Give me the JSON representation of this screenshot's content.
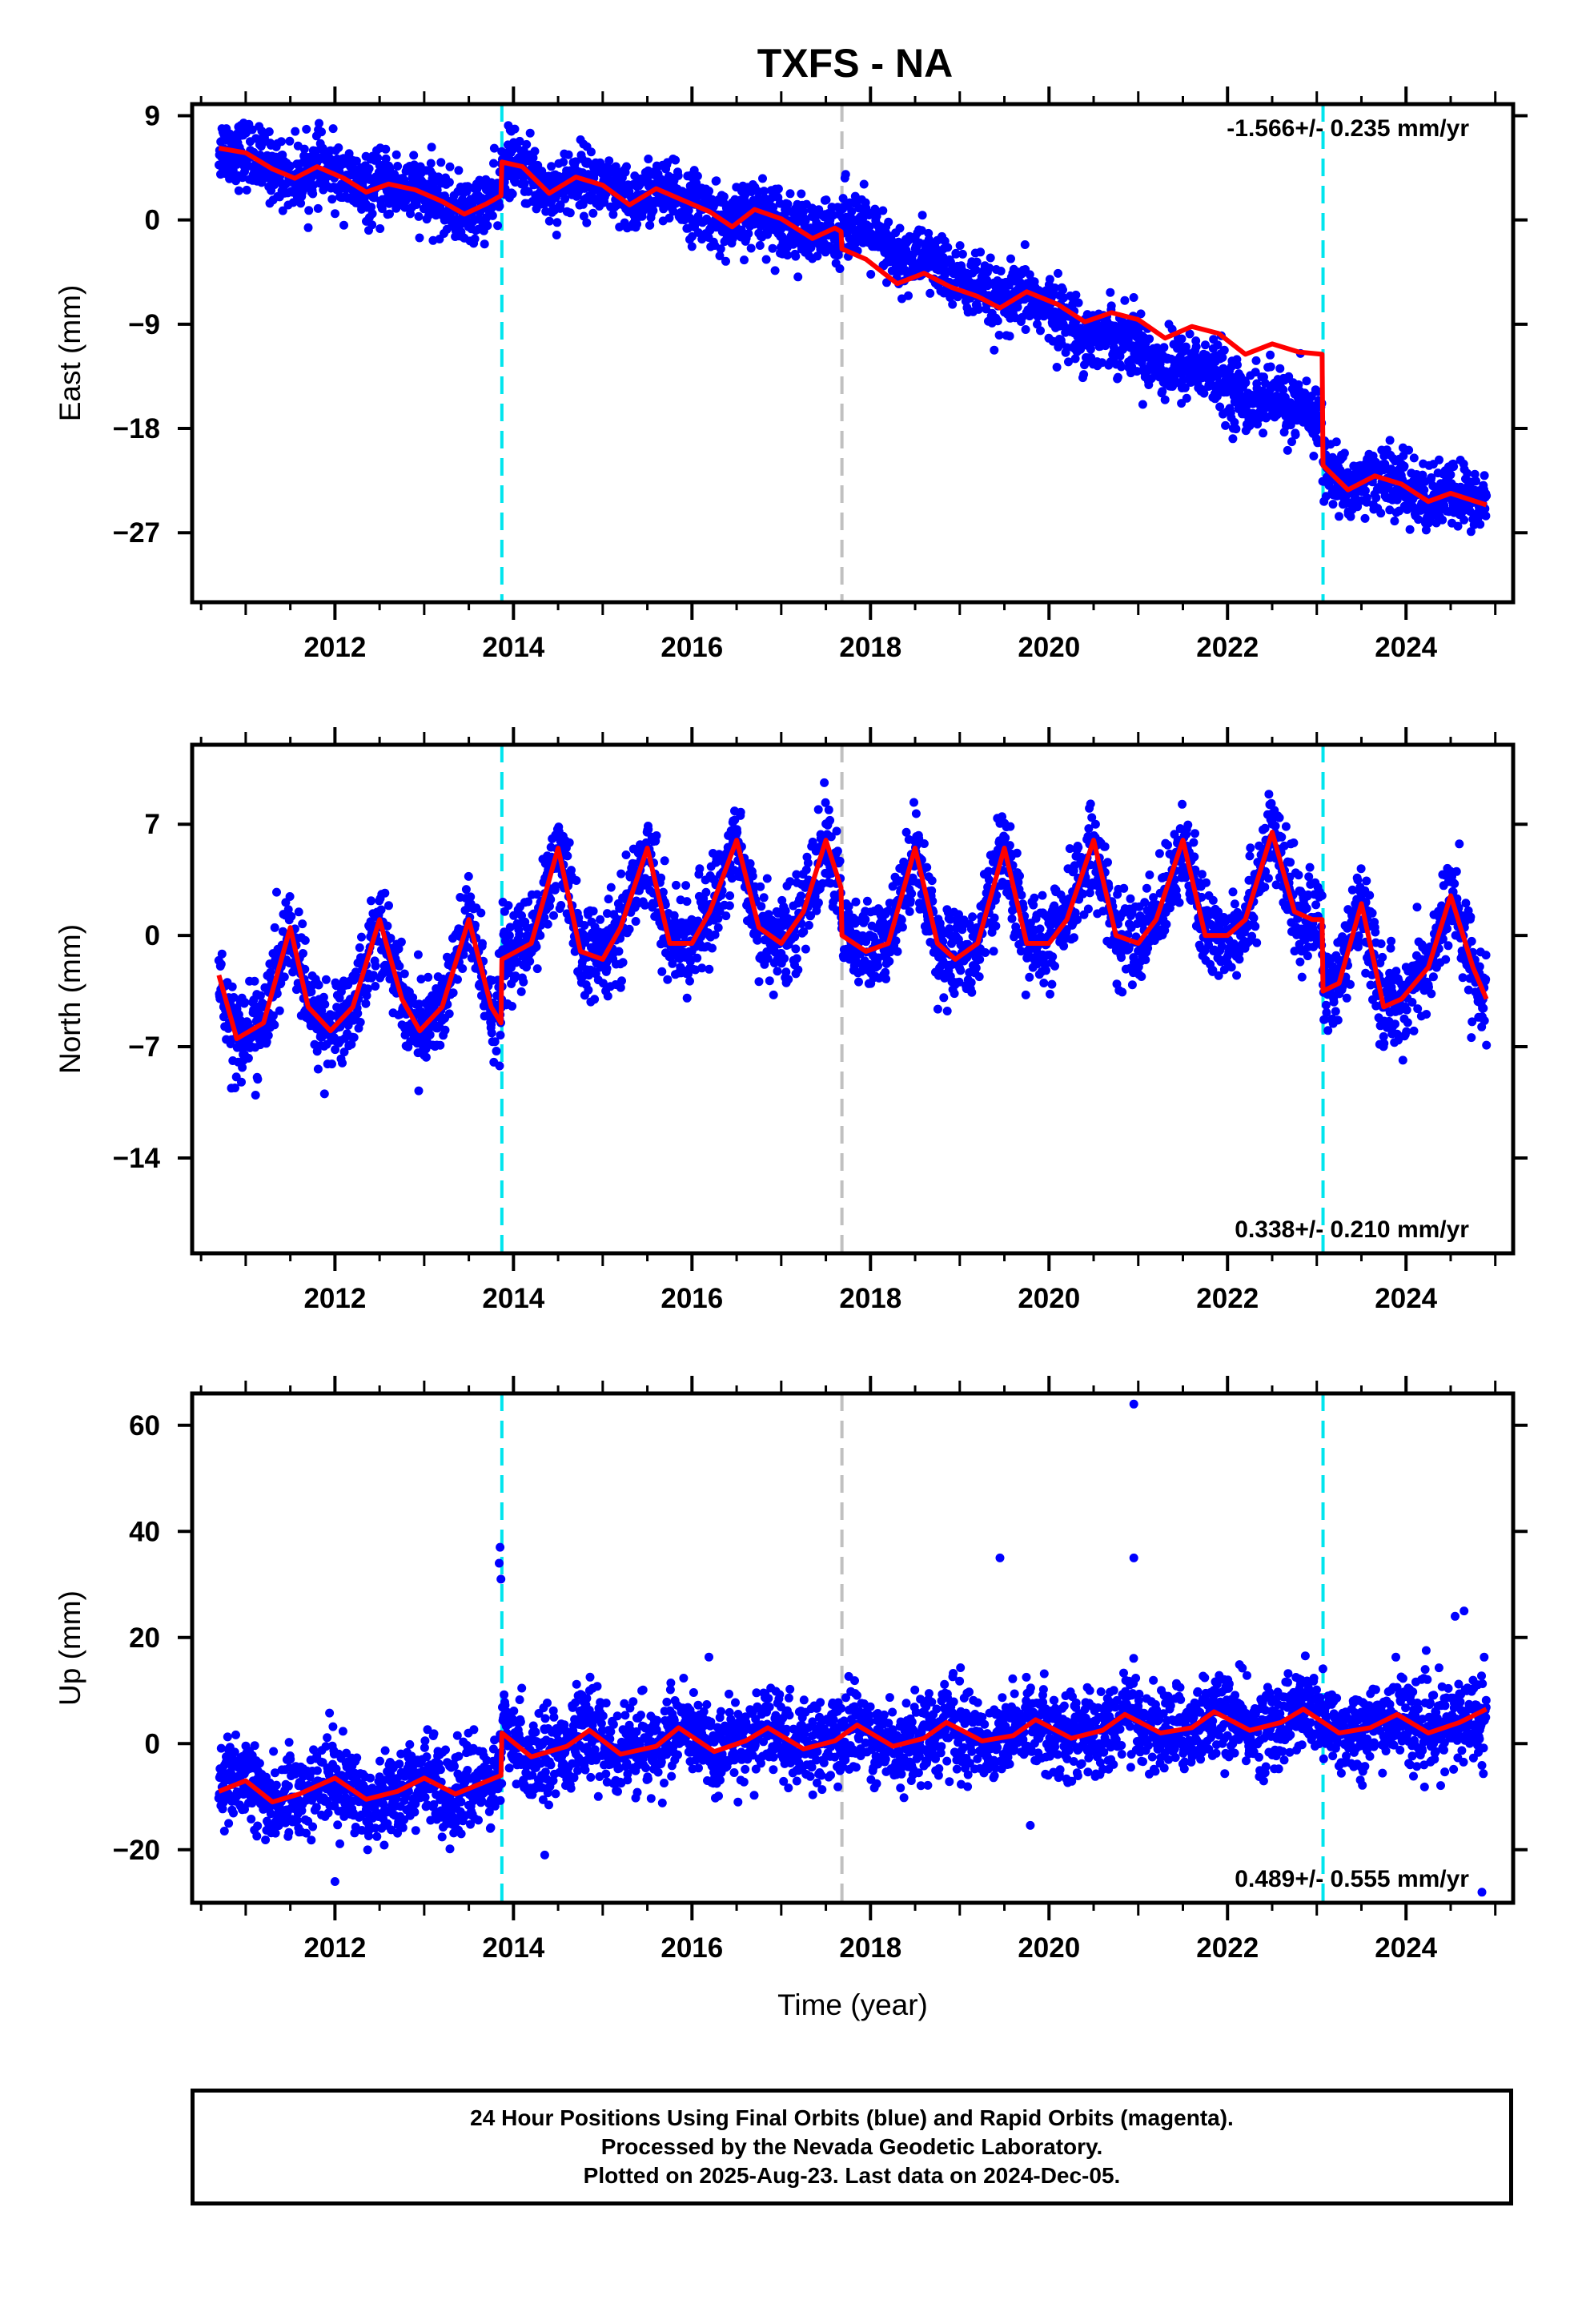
{
  "title": "TXFS - NA",
  "colors": {
    "final_orbits": "#0000ff",
    "model": "#ff0000",
    "offset_equipment": "#00e5ee",
    "offset_earthquake": "#c0c0c0"
  },
  "footer": {
    "line1": "24 Hour Positions Using Final Orbits (blue) and Rapid Orbits (magenta).",
    "line2": "Processed by the Nevada Geodetic Laboratory.",
    "line3": "Plotted on 2025-Aug-23. Last data on 2024-Dec-05."
  },
  "chart_data": [
    {
      "type": "scatter",
      "ylabel": "East (mm)",
      "xlabel": "",
      "xlim": [
        2010.4,
        2025.2
      ],
      "ylim": [
        -33,
        10
      ],
      "xticks": [
        2012,
        2014,
        2016,
        2018,
        2020,
        2022,
        2024
      ],
      "yticks": [
        9,
        0,
        -9,
        -18,
        -27
      ],
      "rate_label": "-1.566+/- 0.235 mm/yr",
      "rate_position": "top-right",
      "offsets_equipment": [
        2013.87,
        2023.07
      ],
      "offsets_earthquake": [
        2017.68
      ],
      "model_line": [
        [
          2010.7,
          6.2
        ],
        [
          2011.0,
          5.8
        ],
        [
          2011.3,
          4.4
        ],
        [
          2011.55,
          3.6
        ],
        [
          2011.8,
          4.6
        ],
        [
          2012.1,
          3.6
        ],
        [
          2012.35,
          2.4
        ],
        [
          2012.6,
          3.1
        ],
        [
          2012.9,
          2.6
        ],
        [
          2013.2,
          1.6
        ],
        [
          2013.45,
          0.5
        ],
        [
          2013.7,
          1.4
        ],
        [
          2013.86,
          2.1
        ],
        [
          2013.87,
          5.0
        ],
        [
          2014.1,
          4.6
        ],
        [
          2014.4,
          2.3
        ],
        [
          2014.7,
          3.7
        ],
        [
          2015.0,
          3.0
        ],
        [
          2015.3,
          1.3
        ],
        [
          2015.6,
          2.7
        ],
        [
          2015.9,
          1.7
        ],
        [
          2016.2,
          0.7
        ],
        [
          2016.45,
          -0.6
        ],
        [
          2016.7,
          0.9
        ],
        [
          2017.0,
          0.1
        ],
        [
          2017.35,
          -1.6
        ],
        [
          2017.6,
          -0.7
        ],
        [
          2017.67,
          -1.0
        ],
        [
          2017.68,
          -2.5
        ],
        [
          2017.95,
          -3.4
        ],
        [
          2018.3,
          -5.5
        ],
        [
          2018.6,
          -4.6
        ],
        [
          2018.9,
          -5.8
        ],
        [
          2019.2,
          -6.6
        ],
        [
          2019.45,
          -7.6
        ],
        [
          2019.75,
          -6.2
        ],
        [
          2020.1,
          -7.3
        ],
        [
          2020.4,
          -8.8
        ],
        [
          2020.7,
          -8.0
        ],
        [
          2021.0,
          -8.6
        ],
        [
          2021.3,
          -10.2
        ],
        [
          2021.6,
          -9.2
        ],
        [
          2021.9,
          -9.8
        ],
        [
          2022.2,
          -11.6
        ],
        [
          2022.5,
          -10.7
        ],
        [
          2022.8,
          -11.4
        ],
        [
          2023.06,
          -11.6
        ],
        [
          2023.07,
          -21.2
        ],
        [
          2023.35,
          -23.3
        ],
        [
          2023.65,
          -22.1
        ],
        [
          2023.95,
          -22.8
        ],
        [
          2024.25,
          -24.3
        ],
        [
          2024.5,
          -23.6
        ],
        [
          2024.9,
          -24.6
        ]
      ]
    },
    {
      "type": "scatter",
      "ylabel": "North (mm)",
      "xlabel": "",
      "xlim": [
        2010.4,
        2025.2
      ],
      "ylim": [
        -20,
        12
      ],
      "xticks": [
        2012,
        2014,
        2016,
        2018,
        2020,
        2022,
        2024
      ],
      "yticks": [
        7,
        0,
        -7,
        -14
      ],
      "rate_label": "0.338+/- 0.210 mm/yr",
      "rate_position": "bottom-right",
      "offsets_equipment": [
        2013.87,
        2023.07
      ],
      "offsets_earthquake": [
        2017.68
      ],
      "model_line": [
        [
          2010.7,
          -2.5
        ],
        [
          2010.9,
          -6.5
        ],
        [
          2011.2,
          -5.5
        ],
        [
          2011.5,
          0.5
        ],
        [
          2011.7,
          -4.5
        ],
        [
          2011.95,
          -6.0
        ],
        [
          2012.2,
          -4.5
        ],
        [
          2012.5,
          1.0
        ],
        [
          2012.75,
          -4.0
        ],
        [
          2012.95,
          -6.0
        ],
        [
          2013.2,
          -4.5
        ],
        [
          2013.5,
          1.0
        ],
        [
          2013.75,
          -4.5
        ],
        [
          2013.86,
          -5.5
        ],
        [
          2013.87,
          -1.5
        ],
        [
          2014.2,
          -0.5
        ],
        [
          2014.5,
          5.5
        ],
        [
          2014.75,
          -1.0
        ],
        [
          2015.0,
          -1.5
        ],
        [
          2015.2,
          0.5
        ],
        [
          2015.5,
          5.5
        ],
        [
          2015.75,
          -0.5
        ],
        [
          2016.0,
          -0.5
        ],
        [
          2016.2,
          1.5
        ],
        [
          2016.5,
          6.0
        ],
        [
          2016.75,
          0.5
        ],
        [
          2017.0,
          -0.5
        ],
        [
          2017.25,
          1.5
        ],
        [
          2017.5,
          6.0
        ],
        [
          2017.67,
          3.0
        ],
        [
          2017.68,
          0.0
        ],
        [
          2017.95,
          -1.0
        ],
        [
          2018.2,
          -0.5
        ],
        [
          2018.5,
          5.5
        ],
        [
          2018.75,
          -0.5
        ],
        [
          2018.95,
          -1.5
        ],
        [
          2019.2,
          -0.5
        ],
        [
          2019.5,
          5.5
        ],
        [
          2019.75,
          -0.5
        ],
        [
          2020.0,
          -0.5
        ],
        [
          2020.2,
          1.0
        ],
        [
          2020.5,
          6.0
        ],
        [
          2020.75,
          0.0
        ],
        [
          2021.0,
          -0.5
        ],
        [
          2021.2,
          1.0
        ],
        [
          2021.5,
          6.0
        ],
        [
          2021.75,
          0.0
        ],
        [
          2022.0,
          0.0
        ],
        [
          2022.2,
          1.0
        ],
        [
          2022.5,
          6.5
        ],
        [
          2022.75,
          1.5
        ],
        [
          2022.95,
          1.0
        ],
        [
          2023.06,
          1.0
        ],
        [
          2023.07,
          -3.5
        ],
        [
          2023.25,
          -3.0
        ],
        [
          2023.5,
          2.0
        ],
        [
          2023.75,
          -4.5
        ],
        [
          2023.95,
          -4.0
        ],
        [
          2024.25,
          -2.0
        ],
        [
          2024.5,
          2.5
        ],
        [
          2024.75,
          -2.0
        ],
        [
          2024.9,
          -4.0
        ]
      ]
    },
    {
      "type": "scatter",
      "ylabel": "Up (mm)",
      "xlabel": "Time (year)",
      "xlim": [
        2010.4,
        2025.2
      ],
      "ylim": [
        -30,
        66
      ],
      "xticks": [
        2012,
        2014,
        2016,
        2018,
        2020,
        2022,
        2024
      ],
      "yticks": [
        60,
        40,
        20,
        0,
        -20
      ],
      "rate_label": "0.489+/- 0.555 mm/yr",
      "rate_position": "bottom-right",
      "offsets_equipment": [
        2013.87,
        2023.07
      ],
      "offsets_earthquake": [
        2017.68
      ],
      "outliers": [
        [
          2013.85,
          37
        ],
        [
          2013.84,
          34
        ],
        [
          2013.86,
          31
        ],
        [
          2019.45,
          35
        ],
        [
          2020.95,
          64
        ],
        [
          2020.95,
          35
        ],
        [
          2024.65,
          25
        ],
        [
          2024.55,
          24
        ],
        [
          2012.0,
          -26
        ],
        [
          2014.35,
          -21
        ],
        [
          2024.85,
          -28
        ]
      ],
      "model_line": [
        [
          2010.7,
          -9.0
        ],
        [
          2011.0,
          -7.0
        ],
        [
          2011.3,
          -11.0
        ],
        [
          2011.6,
          -9.5
        ],
        [
          2012.0,
          -6.5
        ],
        [
          2012.35,
          -10.5
        ],
        [
          2012.7,
          -9.0
        ],
        [
          2013.0,
          -6.5
        ],
        [
          2013.35,
          -9.5
        ],
        [
          2013.86,
          -6.0
        ],
        [
          2013.87,
          2.0
        ],
        [
          2014.2,
          -2.5
        ],
        [
          2014.6,
          -0.5
        ],
        [
          2014.85,
          2.5
        ],
        [
          2015.2,
          -2.0
        ],
        [
          2015.6,
          -0.5
        ],
        [
          2015.85,
          3.0
        ],
        [
          2016.25,
          -1.5
        ],
        [
          2016.6,
          0.5
        ],
        [
          2016.85,
          3.0
        ],
        [
          2017.25,
          -1.0
        ],
        [
          2017.6,
          0.5
        ],
        [
          2017.85,
          3.5
        ],
        [
          2018.25,
          -0.5
        ],
        [
          2018.6,
          1.0
        ],
        [
          2018.85,
          4.0
        ],
        [
          2019.25,
          0.5
        ],
        [
          2019.6,
          1.5
        ],
        [
          2019.85,
          4.5
        ],
        [
          2020.25,
          1.0
        ],
        [
          2020.6,
          2.5
        ],
        [
          2020.85,
          5.5
        ],
        [
          2021.25,
          2.0
        ],
        [
          2021.6,
          3.0
        ],
        [
          2021.85,
          6.0
        ],
        [
          2022.25,
          2.5
        ],
        [
          2022.6,
          4.0
        ],
        [
          2022.85,
          6.5
        ],
        [
          2023.25,
          2.0
        ],
        [
          2023.6,
          3.0
        ],
        [
          2023.9,
          5.5
        ],
        [
          2024.25,
          2.0
        ],
        [
          2024.6,
          4.0
        ],
        [
          2024.9,
          6.5
        ]
      ]
    }
  ]
}
